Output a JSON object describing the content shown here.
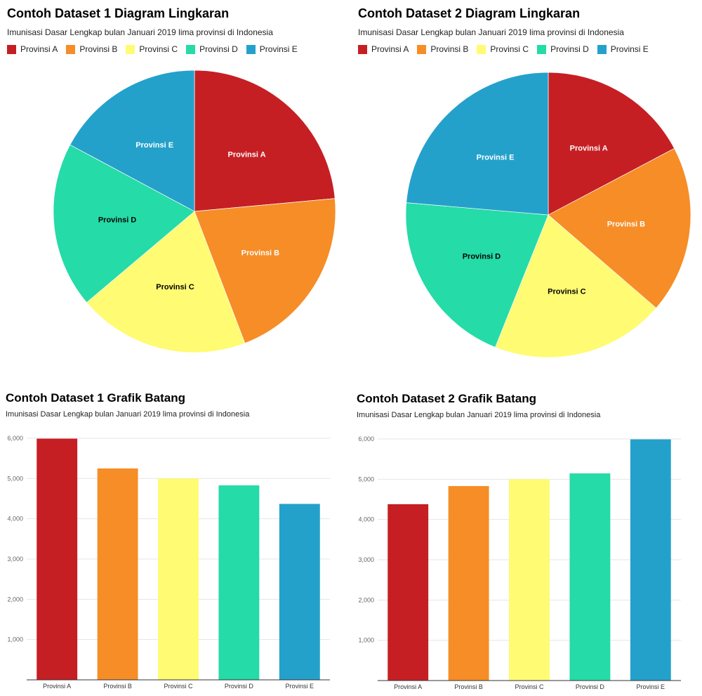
{
  "chart_data": [
    {
      "type": "pie",
      "title": "Contoh Dataset 1 Diagram Lingkaran",
      "subtitle": "Imunisasi Dasar Lengkap bulan Januari 2019 lima provinsi di Indonesia",
      "legend_position": "top-left",
      "categories": [
        "Provinsi A",
        "Provinsi B",
        "Provinsi C",
        "Provinsi D",
        "Provinsi E"
      ],
      "values": [
        5990,
        5250,
        5000,
        4830,
        4370
      ]
    },
    {
      "type": "pie",
      "title": "Contoh Dataset 2 Diagram Lingkaran",
      "subtitle": "Imunisasi Dasar Lengkap bulan Januari 2019 lima provinsi di Indonesia",
      "legend_position": "top-left",
      "categories": [
        "Provinsi A",
        "Provinsi B",
        "Provinsi C",
        "Provinsi D",
        "Provinsi E"
      ],
      "values": [
        4380,
        4830,
        5000,
        5145,
        5990
      ]
    },
    {
      "type": "bar",
      "title": "Contoh Dataset 1 Grafik Batang",
      "subtitle": "Imunisasi Dasar Lengkap bulan Januari 2019 lima provinsi di Indonesia",
      "categories": [
        "Provinsi A",
        "Provinsi B",
        "Provinsi C",
        "Provinsi D",
        "Provinsi E"
      ],
      "values": [
        5990,
        5250,
        5000,
        4830,
        4370
      ],
      "ylim": [
        0,
        6000
      ],
      "yticks": [
        "1,000",
        "2,000",
        "3,000",
        "4,000",
        "5,000",
        "6,000"
      ],
      "grid": true
    },
    {
      "type": "bar",
      "title": "Contoh Dataset 2 Grafik Batang",
      "subtitle": "Imunisasi Dasar Lengkap bulan Januari 2019 lima provinsi di Indonesia",
      "categories": [
        "Provinsi A",
        "Provinsi B",
        "Provinsi C",
        "Provinsi D",
        "Provinsi E"
      ],
      "values": [
        4380,
        4830,
        5000,
        5145,
        5990
      ],
      "ylim": [
        0,
        6000
      ],
      "yticks": [
        "1,000",
        "2,000",
        "3,000",
        "4,000",
        "5,000",
        "6,000"
      ],
      "grid": true
    }
  ],
  "colors": [
    "#c51f24",
    "#f68d26",
    "#fffb73",
    "#25dba7",
    "#24a1cb"
  ],
  "label_colors": [
    "#ffffff",
    "#ffffff",
    "#000000",
    "#000000",
    "#ffffff"
  ]
}
